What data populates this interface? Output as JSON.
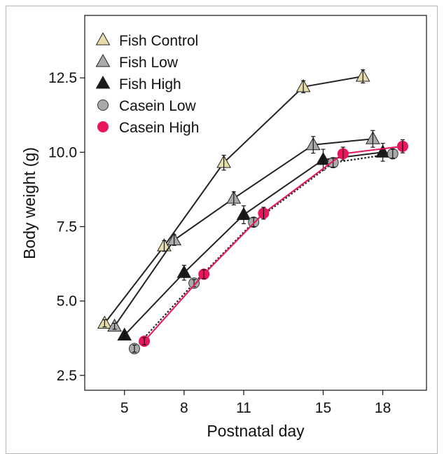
{
  "chart_data": {
    "type": "line",
    "xlabel": "Postnatal day",
    "ylabel": "Body weight (g)",
    "xlim": [
      3,
      20.2
    ],
    "ylim": [
      2,
      14.6
    ],
    "x_ticks": [
      5,
      8,
      11,
      15,
      18
    ],
    "x_tick_labels": [
      "5",
      "8",
      "11",
      "15",
      "18"
    ],
    "y_ticks": [
      2.5,
      5.0,
      7.5,
      10.0,
      12.5
    ],
    "y_tick_labels": [
      "2.5",
      "5.0",
      "7.5",
      "10.0",
      "12.5"
    ],
    "legend_position": "top-left",
    "series": [
      {
        "name": "Fish Control",
        "marker": "triangle",
        "color": "#e6dcaa",
        "line_color": "#222222",
        "line_style": "solid",
        "points": [
          {
            "x": 4.0,
            "y": 4.25,
            "err": 0.12
          },
          {
            "x": 7.0,
            "y": 6.85,
            "err": 0.18
          },
          {
            "x": 10.0,
            "y": 9.65,
            "err": 0.25
          },
          {
            "x": 14.0,
            "y": 12.2,
            "err": 0.2
          },
          {
            "x": 17.0,
            "y": 12.55,
            "err": 0.22
          }
        ]
      },
      {
        "name": "Fish Low",
        "marker": "triangle",
        "color": "#aaaaaa",
        "line_color": "#222222",
        "line_style": "solid",
        "points": [
          {
            "x": 4.5,
            "y": 4.15,
            "err": 0.1
          },
          {
            "x": 7.5,
            "y": 7.05,
            "err": 0.18
          },
          {
            "x": 10.5,
            "y": 8.45,
            "err": 0.22
          },
          {
            "x": 14.5,
            "y": 10.25,
            "err": 0.28
          },
          {
            "x": 17.5,
            "y": 10.45,
            "err": 0.28
          }
        ]
      },
      {
        "name": "Fish High",
        "marker": "triangle",
        "color": "#1a1a1a",
        "line_color": "#222222",
        "line_style": "solid",
        "points": [
          {
            "x": 5.0,
            "y": 3.85,
            "err": 0.12
          },
          {
            "x": 8.0,
            "y": 5.95,
            "err": 0.25
          },
          {
            "x": 11.0,
            "y": 7.9,
            "err": 0.3
          },
          {
            "x": 15.0,
            "y": 9.75,
            "err": 0.35
          },
          {
            "x": 18.0,
            "y": 10.0,
            "err": 0.3
          }
        ]
      },
      {
        "name": "Casein Low",
        "marker": "circle",
        "color": "#aaaaaa",
        "line_color": "#222222",
        "line_style": "dotted",
        "points": [
          {
            "x": 5.5,
            "y": 3.4,
            "err": 0.12
          },
          {
            "x": 8.5,
            "y": 5.6,
            "err": 0.12
          },
          {
            "x": 11.5,
            "y": 7.65,
            "err": 0.15
          },
          {
            "x": 15.5,
            "y": 9.65,
            "err": 0.15
          },
          {
            "x": 18.5,
            "y": 9.95,
            "err": 0.15
          }
        ]
      },
      {
        "name": "Casein High",
        "marker": "circle",
        "color": "#e8175d",
        "line_color": "#e8175d",
        "line_style": "solid",
        "points": [
          {
            "x": 6.0,
            "y": 3.65,
            "err": 0.12
          },
          {
            "x": 9.0,
            "y": 5.9,
            "err": 0.15
          },
          {
            "x": 12.0,
            "y": 7.95,
            "err": 0.2
          },
          {
            "x": 16.0,
            "y": 9.95,
            "err": 0.22
          },
          {
            "x": 19.0,
            "y": 10.2,
            "err": 0.22
          }
        ]
      }
    ]
  }
}
